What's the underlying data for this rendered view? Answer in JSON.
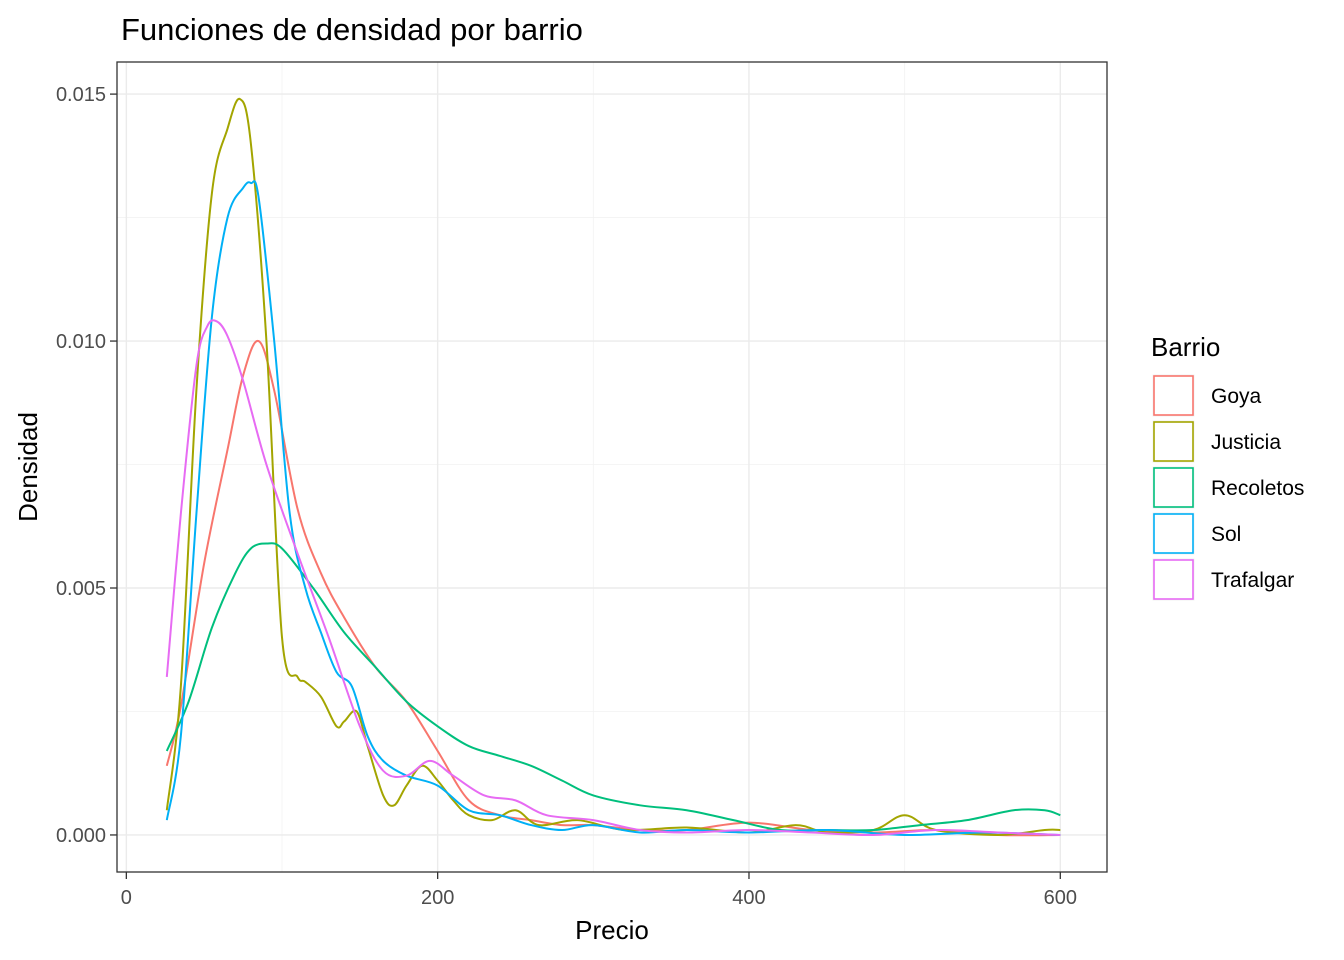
{
  "chart_data": {
    "type": "line",
    "title": "Funciones de densidad por barrio",
    "xlabel": "Precio",
    "ylabel": "Densidad",
    "xlim": [
      -6,
      630
    ],
    "ylim": [
      -0.00075,
      0.01565
    ],
    "xticks": [
      0,
      200,
      400,
      600
    ],
    "xtick_labels": [
      "0",
      "200",
      "400",
      "600"
    ],
    "yticks": [
      0.0,
      0.005,
      0.01,
      0.015
    ],
    "ytick_labels": [
      "0.000",
      "0.005",
      "0.010",
      "0.015"
    ],
    "grid": true,
    "legend": {
      "title": "Barrio",
      "position": "right"
    },
    "series": [
      {
        "name": "Goya",
        "color": "#F8766D",
        "x": [
          26,
          35,
          50,
          65,
          75,
          85,
          95,
          110,
          125,
          140,
          160,
          180,
          200,
          220,
          240,
          260,
          280,
          300,
          330,
          360,
          400,
          440,
          480,
          520,
          560,
          600
        ],
        "y": [
          0.0014,
          0.0026,
          0.0055,
          0.0078,
          0.0093,
          0.01,
          0.009,
          0.0066,
          0.0053,
          0.0044,
          0.0034,
          0.0027,
          0.0017,
          0.0007,
          0.0004,
          0.0003,
          0.0002,
          0.0002,
          0.0001,
          0.0001,
          0.00025,
          0.0001,
          5e-05,
          0.0001,
          0.0,
          0.0
        ]
      },
      {
        "name": "Justicia",
        "color": "#A3A500",
        "x": [
          26,
          35,
          45,
          55,
          65,
          73,
          80,
          90,
          100,
          110,
          115,
          125,
          135,
          140,
          148,
          155,
          165,
          172,
          180,
          190,
          200,
          210,
          220,
          235,
          250,
          265,
          290,
          320,
          360,
          400,
          430,
          450,
          480,
          500,
          520,
          560,
          590,
          600
        ],
        "y": [
          0.0005,
          0.003,
          0.009,
          0.013,
          0.0143,
          0.0149,
          0.014,
          0.01,
          0.004,
          0.0032,
          0.0031,
          0.0028,
          0.0022,
          0.0023,
          0.0025,
          0.0018,
          0.0008,
          0.0006,
          0.001,
          0.0014,
          0.0011,
          0.0007,
          0.0004,
          0.0003,
          0.0005,
          0.0002,
          0.0003,
          0.0001,
          0.00015,
          5e-05,
          0.0002,
          5e-05,
          0.0001,
          0.0004,
          0.0001,
          0.0,
          0.0001,
          0.0001
        ]
      },
      {
        "name": "Recoletos",
        "color": "#00BF7D",
        "x": [
          26,
          40,
          55,
          70,
          80,
          90,
          100,
          120,
          140,
          160,
          180,
          200,
          220,
          240,
          260,
          280,
          300,
          330,
          360,
          390,
          420,
          450,
          480,
          510,
          540,
          570,
          590,
          600
        ],
        "y": [
          0.0017,
          0.0027,
          0.0042,
          0.0053,
          0.0058,
          0.0059,
          0.0058,
          0.005,
          0.0041,
          0.0034,
          0.0027,
          0.0022,
          0.0018,
          0.0016,
          0.0014,
          0.0011,
          0.0008,
          0.0006,
          0.0005,
          0.0003,
          0.0001,
          0.0001,
          0.0001,
          0.0002,
          0.0003,
          0.0005,
          0.0005,
          0.0004
        ]
      },
      {
        "name": "Sol",
        "color": "#00B0F6",
        "x": [
          26,
          35,
          45,
          55,
          65,
          75,
          80,
          85,
          95,
          105,
          115,
          125,
          135,
          145,
          155,
          165,
          180,
          200,
          220,
          240,
          260,
          280,
          300,
          330,
          360,
          400,
          450,
          500,
          550,
          600
        ],
        "y": [
          0.0003,
          0.002,
          0.0065,
          0.0105,
          0.0125,
          0.0131,
          0.0132,
          0.0129,
          0.01,
          0.0065,
          0.005,
          0.0041,
          0.0033,
          0.003,
          0.002,
          0.0015,
          0.0012,
          0.001,
          0.0005,
          0.0004,
          0.0002,
          0.0001,
          0.0002,
          5e-05,
          0.0001,
          5e-05,
          0.0001,
          0.0,
          5e-05,
          0.0
        ]
      },
      {
        "name": "Trafalgar",
        "color": "#E76BF3",
        "x": [
          26,
          35,
          45,
          52,
          58,
          65,
          75,
          90,
          110,
          130,
          150,
          165,
          180,
          195,
          210,
          230,
          250,
          270,
          300,
          330,
          360,
          400,
          440,
          480,
          520,
          560,
          600
        ],
        "y": [
          0.0032,
          0.0065,
          0.0095,
          0.0103,
          0.0104,
          0.0101,
          0.0092,
          0.0075,
          0.0057,
          0.004,
          0.0022,
          0.0013,
          0.0012,
          0.0015,
          0.0012,
          0.0008,
          0.0007,
          0.0004,
          0.0003,
          0.0001,
          5e-05,
          0.0001,
          5e-05,
          0.0,
          0.0001,
          5e-05,
          0.0
        ]
      }
    ]
  }
}
